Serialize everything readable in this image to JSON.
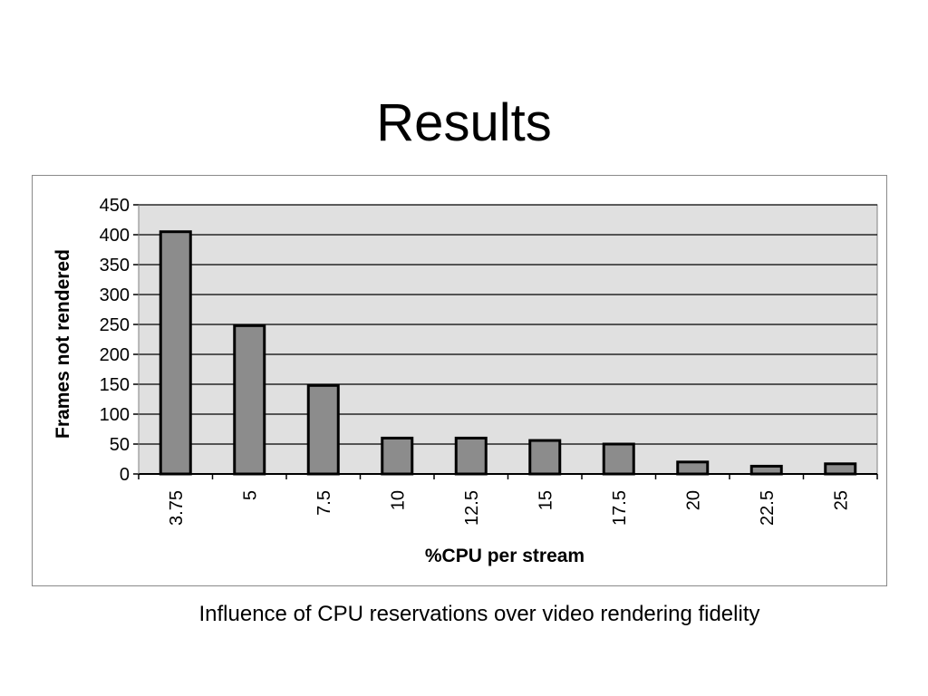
{
  "slide": {
    "title": "Results",
    "caption": "Influence of CPU reservations over video rendering fidelity"
  },
  "colors": {
    "plot_background": "#e0e0e0",
    "bar_fill": "#8c8c8c",
    "bar_stroke": "#000000",
    "gridline": "#000000",
    "text": "#000000"
  },
  "chart_data": {
    "type": "bar",
    "title": "",
    "xlabel": "%CPU per stream",
    "ylabel": "Frames not rendered",
    "categories": [
      "3.75",
      "5",
      "7.5",
      "10",
      "12.5",
      "15",
      "17.5",
      "20",
      "22.5",
      "25"
    ],
    "values": [
      405,
      248,
      148,
      60,
      60,
      56,
      50,
      20,
      13,
      17
    ],
    "ylim": [
      0,
      450
    ],
    "yticks": [
      "0",
      "50",
      "100",
      "150",
      "200",
      "250",
      "300",
      "350",
      "400",
      "450"
    ],
    "grid": true,
    "legend": "none"
  }
}
